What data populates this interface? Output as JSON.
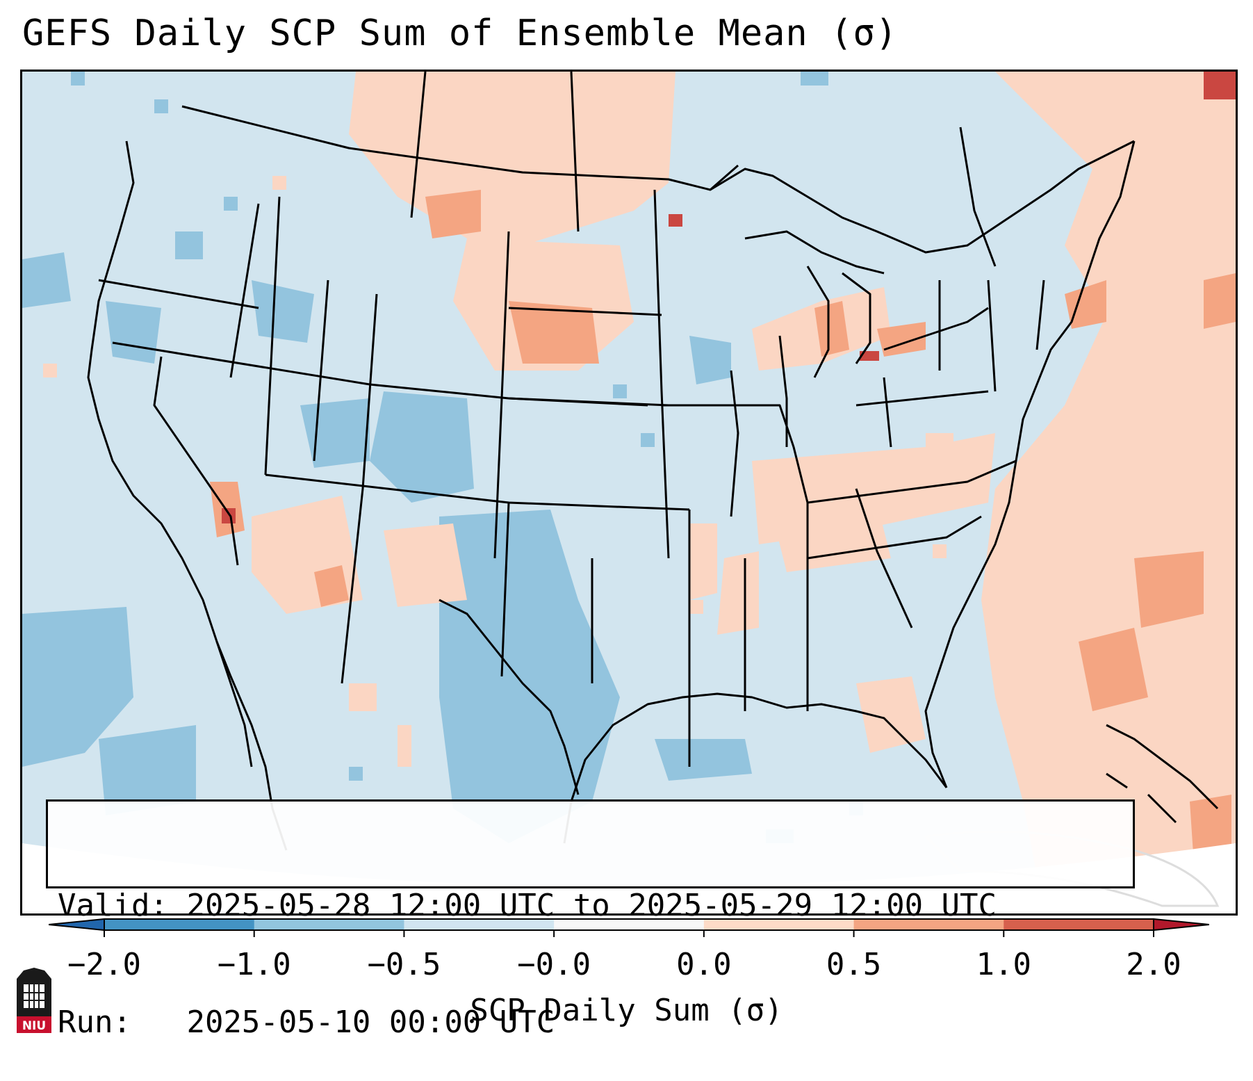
{
  "title": "GEFS Daily SCP Sum of Ensemble Mean (σ)",
  "info": {
    "valid_label": "Valid:",
    "valid_value": "2025-05-28 12:00 UTC to 2025-05-29 12:00 UTC",
    "run_label": "Run:",
    "run_value": "2025-05-10 00:00 UTC"
  },
  "colorbar": {
    "label": "SCP Daily Sum (σ)",
    "ticks": [
      "−2.0",
      "−1.0",
      "−0.5",
      "−0.0",
      "0.0",
      "0.5",
      "1.0",
      "2.0"
    ],
    "colors": [
      "#4393c3",
      "#92c5de",
      "#d1e5f0",
      "#f7f7f7",
      "#fddbc7",
      "#f4a582",
      "#d6604d"
    ],
    "extend_low_color": "#2166ac",
    "extend_high_color": "#b2182b"
  },
  "logo": {
    "text": "NIU",
    "icon": "university-seal-icon"
  },
  "map": {
    "projection": "Lambert Conformal",
    "region": "CONUS",
    "icon": "usa-map-icon"
  }
}
